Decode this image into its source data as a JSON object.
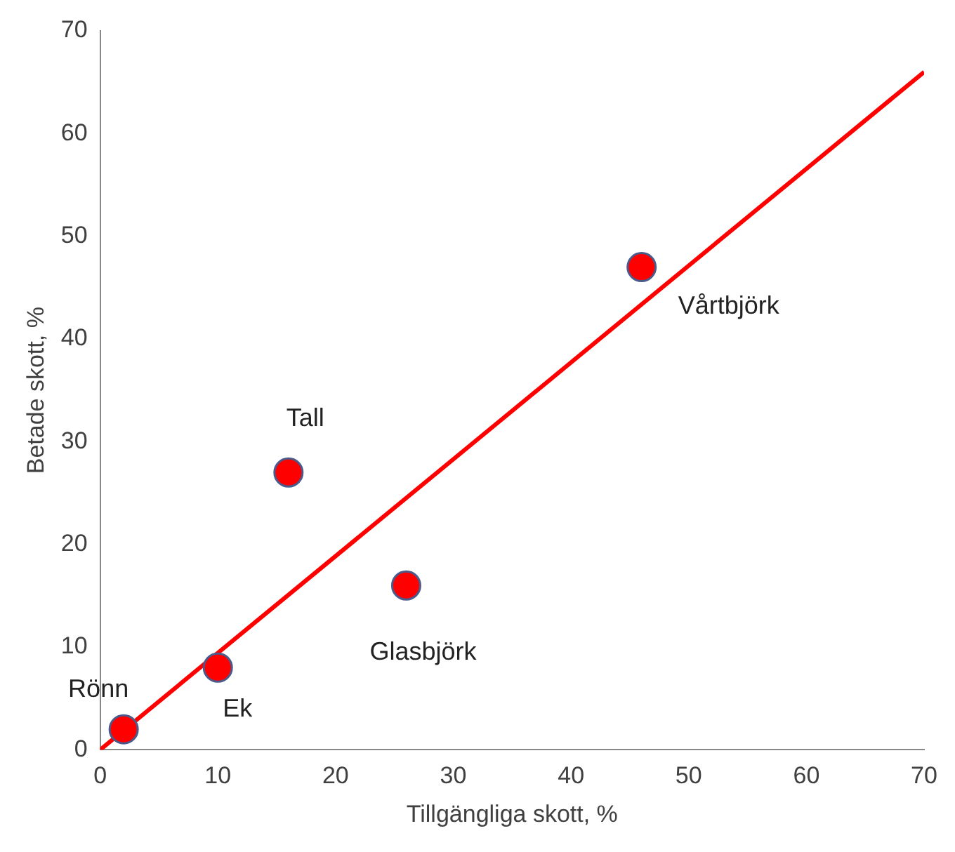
{
  "chart_data": {
    "type": "scatter",
    "xlabel": "Tillgängliga skott, %",
    "ylabel": "Betade skott, %",
    "series": [
      {
        "type": "scatter",
        "color": "#ff0000",
        "x": [
          2,
          10,
          16,
          26,
          46
        ],
        "values": [
          2,
          8,
          27,
          16,
          47
        ],
        "marker": "circle"
      },
      {
        "type": "line",
        "color": "#ff0000",
        "x": [
          0,
          70
        ],
        "values": [
          0,
          66
        ],
        "marker": "none"
      }
    ],
    "xlim": [
      0,
      70
    ],
    "xticks": [
      0,
      10,
      20,
      30,
      40,
      50,
      60,
      70
    ],
    "ylim": [
      0,
      70
    ],
    "yticks": [
      0,
      10,
      20,
      30,
      40,
      50,
      60,
      70
    ],
    "grid": false,
    "legend": false,
    "annotations": [
      {
        "text": "Rönn",
        "x": 2,
        "y": 2
      },
      {
        "text": "Ek",
        "x": 10,
        "y": 8
      },
      {
        "text": "Tall",
        "x": 16,
        "y": 27
      },
      {
        "text": "Glasbjörk",
        "x": 26,
        "y": 16
      },
      {
        "text": "Vårtbjörk",
        "x": 46,
        "y": 47
      }
    ]
  }
}
